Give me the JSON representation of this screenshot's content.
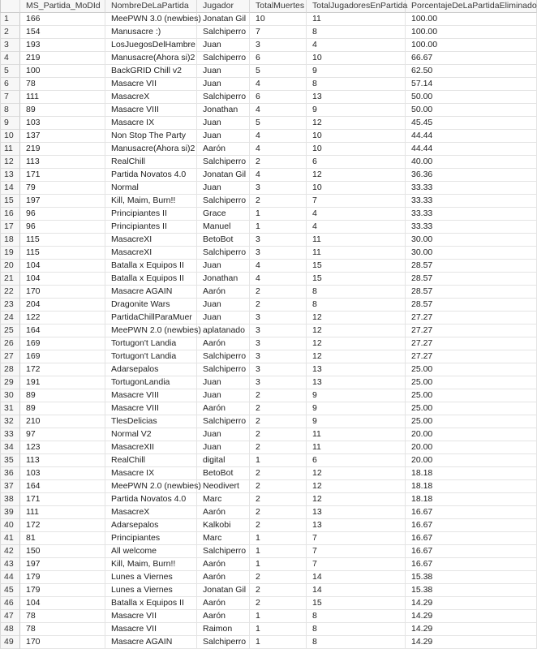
{
  "grid": {
    "corner_label": "",
    "columns": [
      "MS_Partida_MoDId",
      "NombreDeLaPartida",
      "Jugador",
      "TotalMuertes",
      "TotalJugadoresEnPartida",
      "PorcentajeDeLaPartidaEliminado"
    ],
    "column_keys": [
      "ms-partida-modid",
      "nombre-de-la-partida",
      "jugador",
      "total-muertes",
      "total-jugadores-en-partida",
      "porcentaje-de-la-partida-eliminado"
    ],
    "rows": [
      [
        "1",
        "166",
        "MeePWN 3.0 (newbies)",
        "Jonatan Gil",
        "10",
        "11",
        "100.00"
      ],
      [
        "2",
        "154",
        "Manusacre :)",
        "Salchiperro",
        "7",
        "8",
        "100.00"
      ],
      [
        "3",
        "193",
        "LosJuegosDelHambre",
        "Juan",
        "3",
        "4",
        "100.00"
      ],
      [
        "4",
        "219",
        "Manusacre(Ahora si)2",
        "Salchiperro",
        "6",
        "10",
        "66.67"
      ],
      [
        "5",
        "100",
        "BackGRID Chill v2",
        "Juan",
        "5",
        "9",
        "62.50"
      ],
      [
        "6",
        "78",
        "Masacre VII",
        "Juan",
        "4",
        "8",
        "57.14"
      ],
      [
        "7",
        "111",
        "MasacreX",
        "Salchiperro",
        "6",
        "13",
        "50.00"
      ],
      [
        "8",
        "89",
        "Masacre VIII",
        "Jonathan",
        "4",
        "9",
        "50.00"
      ],
      [
        "9",
        "103",
        "Masacre IX",
        "Juan",
        "5",
        "12",
        "45.45"
      ],
      [
        "10",
        "137",
        "Non Stop The Party",
        "Juan",
        "4",
        "10",
        "44.44"
      ],
      [
        "11",
        "219",
        "Manusacre(Ahora si)2",
        "Aarón",
        "4",
        "10",
        "44.44"
      ],
      [
        "12",
        "113",
        "RealChill",
        "Salchiperro",
        "2",
        "6",
        "40.00"
      ],
      [
        "13",
        "171",
        "Partida Novatos 4.0",
        "Jonatan Gil",
        "4",
        "12",
        "36.36"
      ],
      [
        "14",
        "79",
        "Normal",
        "Juan",
        "3",
        "10",
        "33.33"
      ],
      [
        "15",
        "197",
        "Kill, Maim, Burn!!",
        "Salchiperro",
        "2",
        "7",
        "33.33"
      ],
      [
        "16",
        "96",
        "Principiantes II",
        "Grace",
        "1",
        "4",
        "33.33"
      ],
      [
        "17",
        "96",
        "Principiantes II",
        "Manuel",
        "1",
        "4",
        "33.33"
      ],
      [
        "18",
        "115",
        "MasacreXI",
        "BetoBot",
        "3",
        "11",
        "30.00"
      ],
      [
        "19",
        "115",
        "MasacreXI",
        "Salchiperro",
        "3",
        "11",
        "30.00"
      ],
      [
        "20",
        "104",
        "Batalla x Equipos II",
        "Juan",
        "4",
        "15",
        "28.57"
      ],
      [
        "21",
        "104",
        "Batalla x Equipos II",
        "Jonathan",
        "4",
        "15",
        "28.57"
      ],
      [
        "22",
        "170",
        "Masacre AGAIN",
        "Aarón",
        "2",
        "8",
        "28.57"
      ],
      [
        "23",
        "204",
        "Dragonite Wars",
        "Juan",
        "2",
        "8",
        "28.57"
      ],
      [
        "24",
        "122",
        "PartidaChillParaMuer",
        "Juan",
        "3",
        "12",
        "27.27"
      ],
      [
        "25",
        "164",
        "MeePWN 2.0 (newbies)",
        "aplatanado",
        "3",
        "12",
        "27.27"
      ],
      [
        "26",
        "169",
        "Tortugon't Landia",
        "Aarón",
        "3",
        "12",
        "27.27"
      ],
      [
        "27",
        "169",
        "Tortugon't Landia",
        "Salchiperro",
        "3",
        "12",
        "27.27"
      ],
      [
        "28",
        "172",
        "Adarsepalos",
        "Salchiperro",
        "3",
        "13",
        "25.00"
      ],
      [
        "29",
        "191",
        "TortugonLandia",
        "Juan",
        "3",
        "13",
        "25.00"
      ],
      [
        "30",
        "89",
        "Masacre VIII",
        "Juan",
        "2",
        "9",
        "25.00"
      ],
      [
        "31",
        "89",
        "Masacre VIII",
        "Aarón",
        "2",
        "9",
        "25.00"
      ],
      [
        "32",
        "210",
        "TlesDelicias",
        "Salchiperro",
        "2",
        "9",
        "25.00"
      ],
      [
        "33",
        "97",
        "Normal V2",
        "Juan",
        "2",
        "11",
        "20.00"
      ],
      [
        "34",
        "123",
        "MasacreXII",
        "Juan",
        "2",
        "11",
        "20.00"
      ],
      [
        "35",
        "113",
        "RealChill",
        "digital",
        "1",
        "6",
        "20.00"
      ],
      [
        "36",
        "103",
        "Masacre IX",
        "BetoBot",
        "2",
        "12",
        "18.18"
      ],
      [
        "37",
        "164",
        "MeePWN 2.0 (newbies)",
        "Neodivert",
        "2",
        "12",
        "18.18"
      ],
      [
        "38",
        "171",
        "Partida Novatos 4.0",
        "Marc",
        "2",
        "12",
        "18.18"
      ],
      [
        "39",
        "111",
        "MasacreX",
        "Aarón",
        "2",
        "13",
        "16.67"
      ],
      [
        "40",
        "172",
        "Adarsepalos",
        "Kalkobi",
        "2",
        "13",
        "16.67"
      ],
      [
        "41",
        "81",
        "Principiantes",
        "Marc",
        "1",
        "7",
        "16.67"
      ],
      [
        "42",
        "150",
        "All welcome",
        "Salchiperro",
        "1",
        "7",
        "16.67"
      ],
      [
        "43",
        "197",
        "Kill, Maim, Burn!!",
        "Aarón",
        "1",
        "7",
        "16.67"
      ],
      [
        "44",
        "179",
        "Lunes a Viernes",
        "Aarón",
        "2",
        "14",
        "15.38"
      ],
      [
        "45",
        "179",
        "Lunes a Viernes",
        "Jonatan Gil",
        "2",
        "14",
        "15.38"
      ],
      [
        "46",
        "104",
        "Batalla x Equipos II",
        "Aarón",
        "2",
        "15",
        "14.29"
      ],
      [
        "47",
        "78",
        "Masacre VII",
        "Aarón",
        "1",
        "8",
        "14.29"
      ],
      [
        "48",
        "78",
        "Masacre VII",
        "Raimon",
        "1",
        "8",
        "14.29"
      ],
      [
        "49",
        "170",
        "Masacre AGAIN",
        "Salchiperro",
        "1",
        "8",
        "14.29"
      ]
    ],
    "colors": {
      "grid_line": "#e4e4e4",
      "header_line": "#c9c9c9",
      "header_bg": "#f7f7f7",
      "text": "#1e1e1e"
    }
  }
}
